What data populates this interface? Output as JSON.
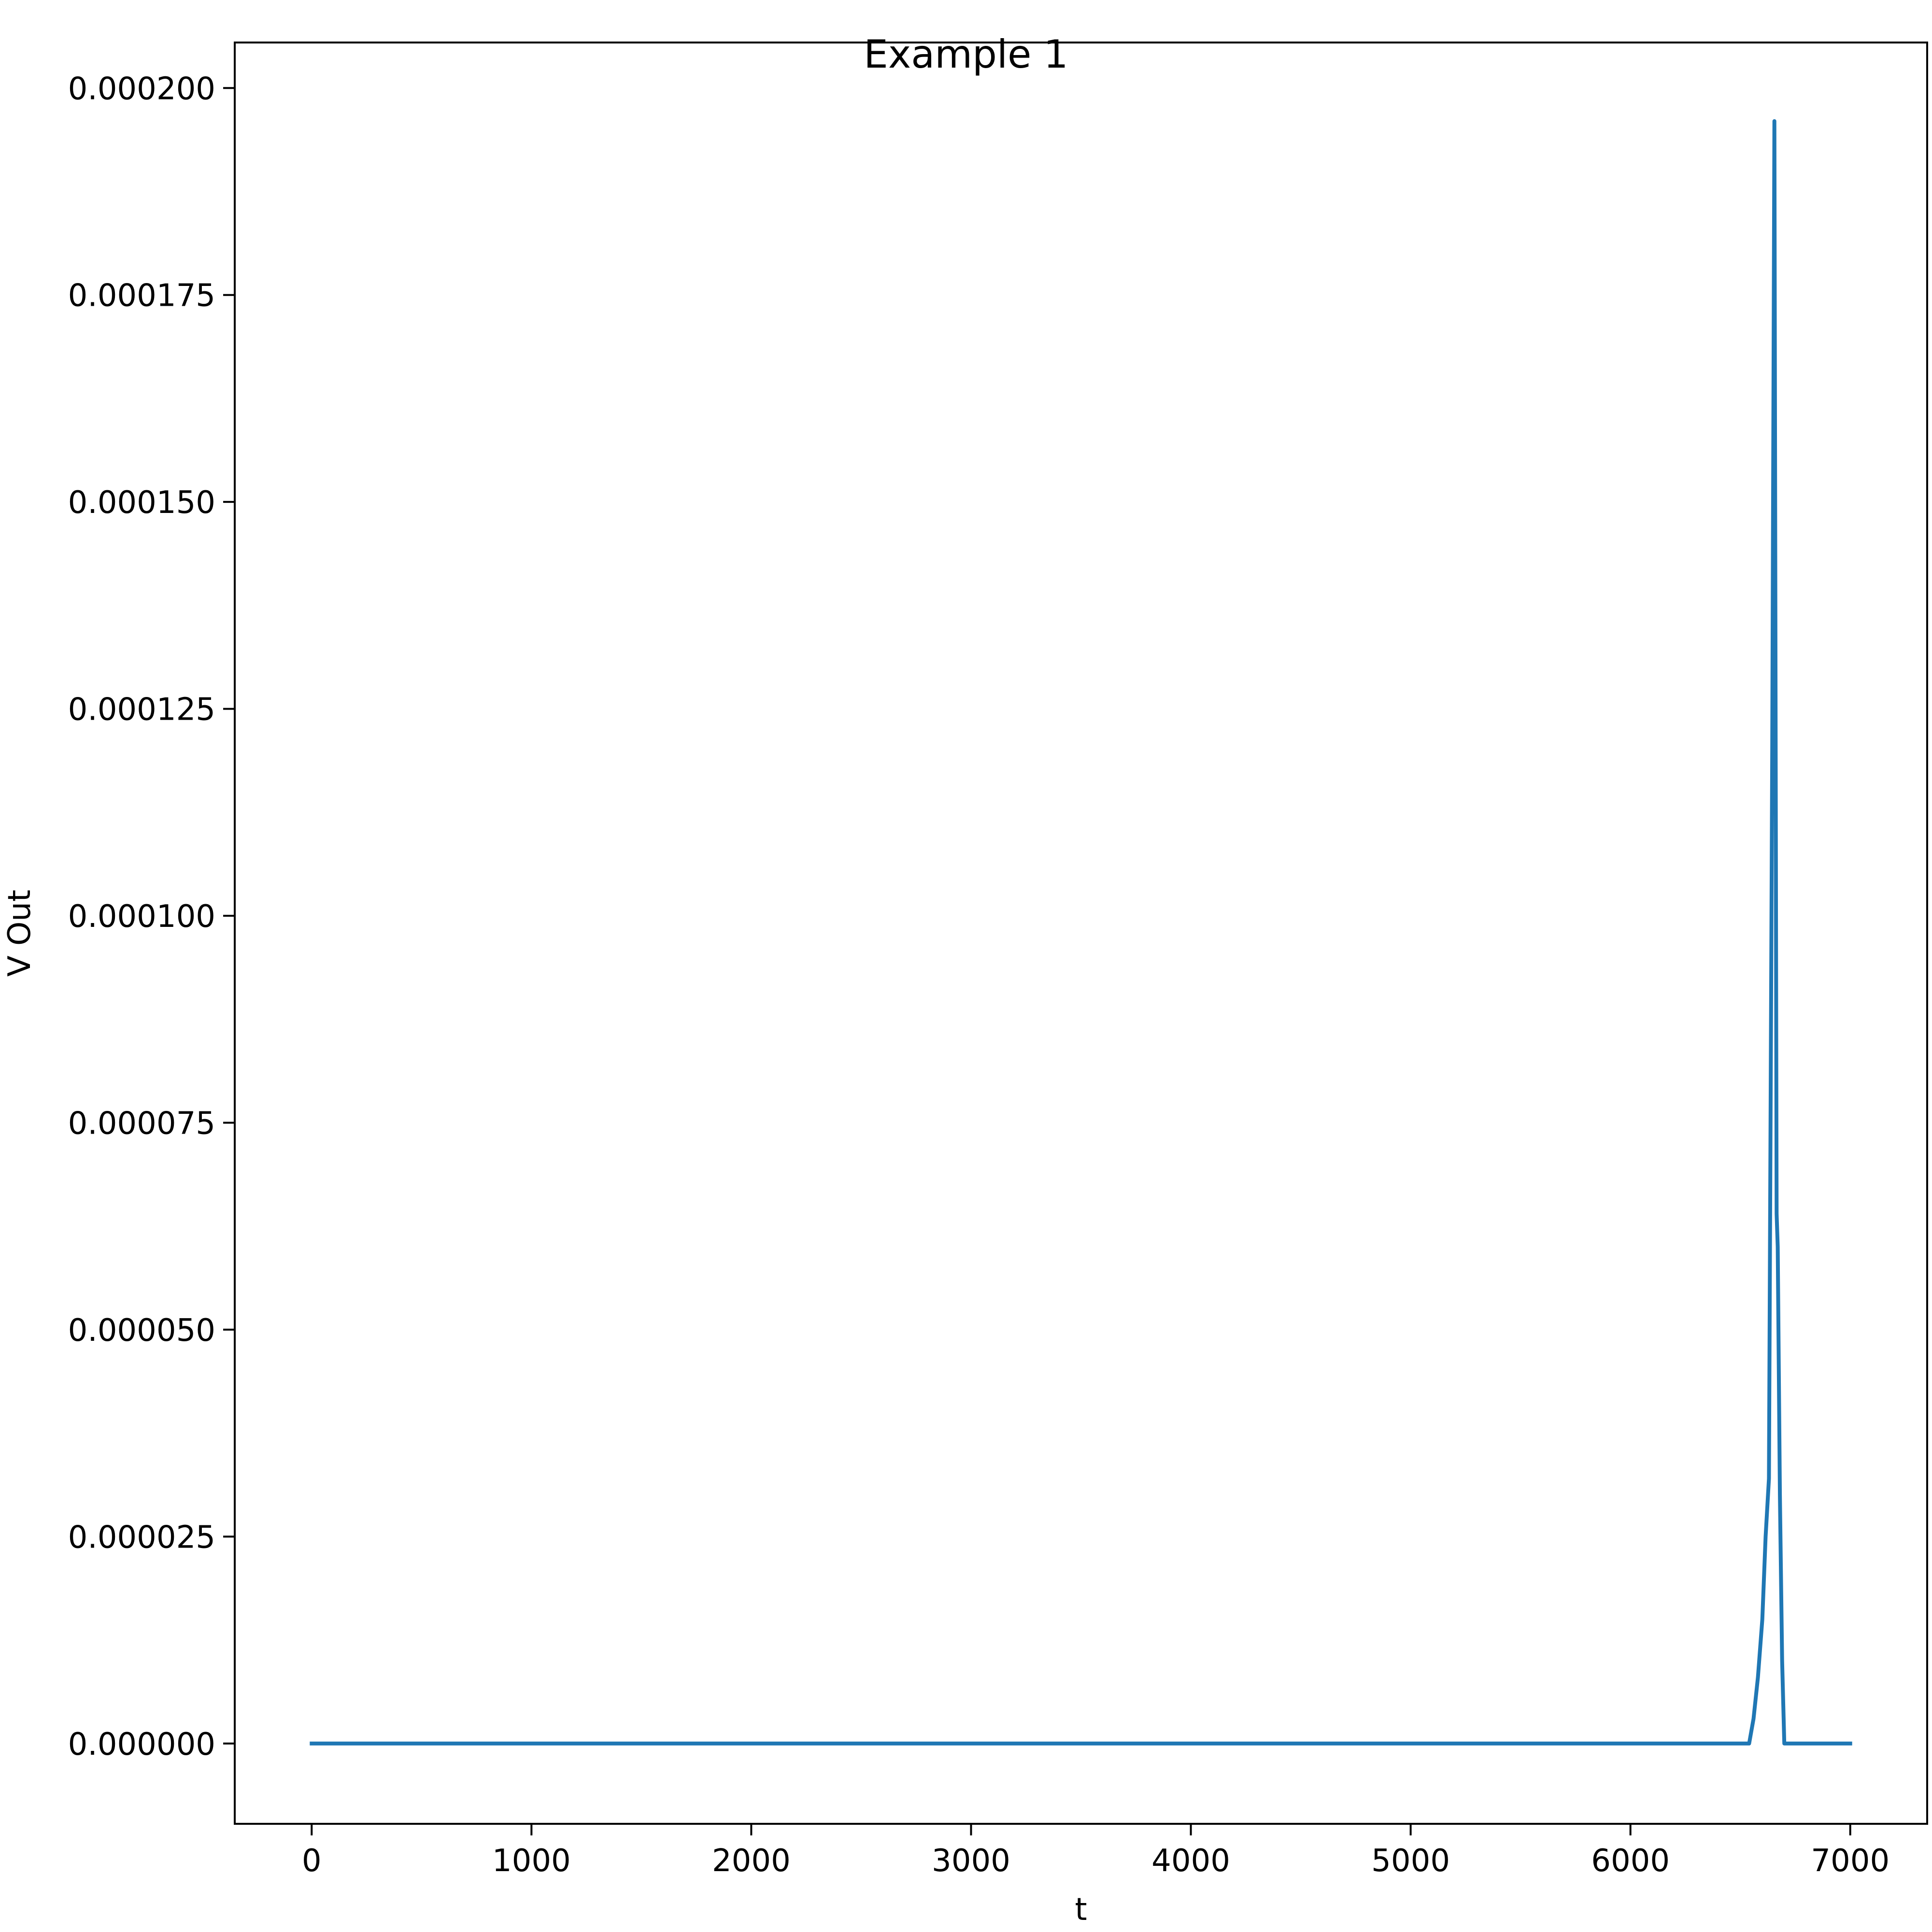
{
  "chart_data": {
    "type": "line",
    "title": "Example 1",
    "xlabel": "t",
    "ylabel": "V Out",
    "xlim": [
      -350,
      7350
    ],
    "ylim": [
      -9.7e-06,
      0.0002055
    ],
    "x_ticks": [
      0,
      1000,
      2000,
      3000,
      4000,
      5000,
      6000,
      7000
    ],
    "x_tick_labels": [
      "0",
      "1000",
      "2000",
      "3000",
      "4000",
      "5000",
      "6000",
      "7000"
    ],
    "y_ticks": [
      0,
      2.5e-05,
      5e-05,
      7.5e-05,
      0.0001,
      0.000125,
      0.00015,
      0.000175,
      0.0002
    ],
    "y_tick_labels": [
      "0.000000",
      "0.000025",
      "0.000050",
      "0.000075",
      "0.000100",
      "0.000125",
      "0.000150",
      "0.000175",
      "0.000200"
    ],
    "grid": false,
    "legend": "none",
    "series": [
      {
        "color": "#1f77b4",
        "x": [
          0,
          1000,
          2000,
          3000,
          4000,
          5000,
          6000,
          6500,
          6540,
          6560,
          6580,
          6600,
          6615,
          6630,
          6645,
          6655,
          6665,
          6670,
          6680,
          6690,
          6700,
          6800,
          7000
        ],
        "y": [
          0,
          0,
          0,
          0,
          0,
          0,
          0,
          0,
          0,
          3e-06,
          8e-06,
          1.5e-05,
          2.5e-05,
          3.2e-05,
          0.00012,
          0.000196,
          6.4e-05,
          6e-05,
          3e-05,
          1e-05,
          0,
          0,
          0
        ]
      }
    ]
  }
}
